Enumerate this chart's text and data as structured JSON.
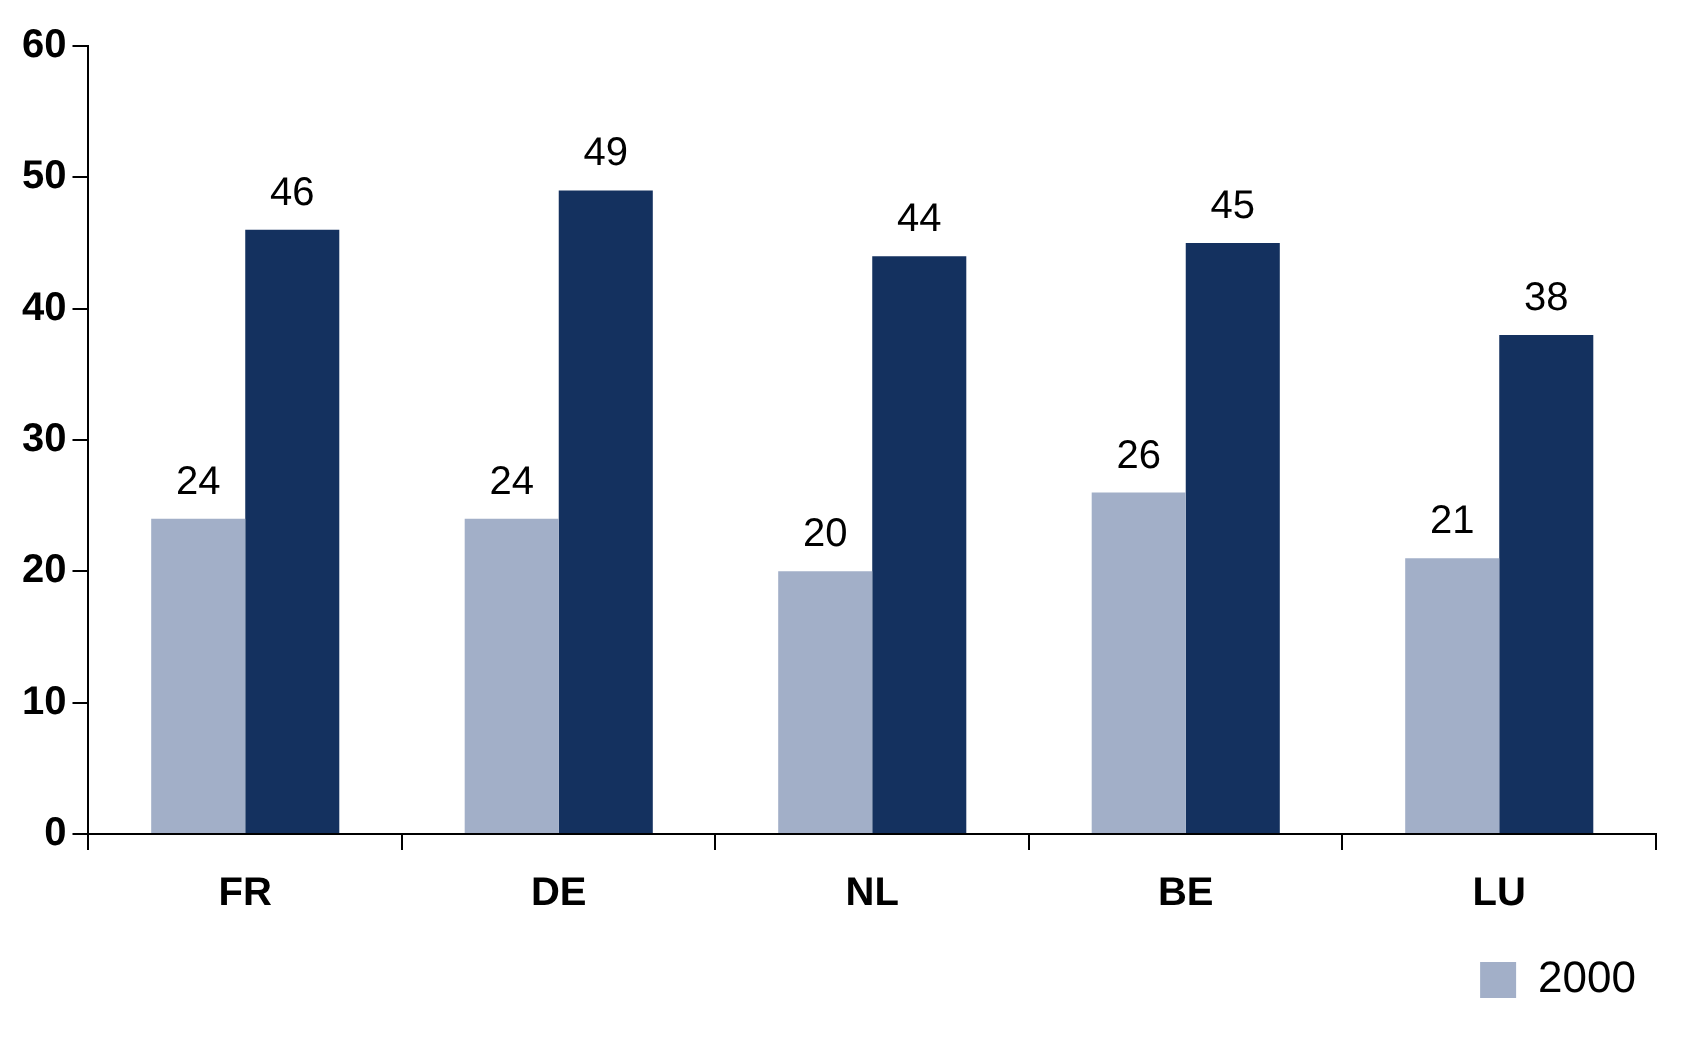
{
  "chart_data": {
    "type": "bar",
    "categories": [
      "FR",
      "DE",
      "NL",
      "BE",
      "LU"
    ],
    "series": [
      {
        "name": "2000",
        "color": "#a2afc8",
        "values": [
          24,
          24,
          20,
          26,
          21
        ]
      },
      {
        "color": "#14315f",
        "values": [
          46,
          49,
          44,
          45,
          38
        ]
      }
    ],
    "ylim": [
      0,
      60
    ],
    "yticks": [
      0,
      10,
      20,
      30,
      40,
      50,
      60
    ],
    "grid": false,
    "legend": "bottom right",
    "data_labels": true
  }
}
